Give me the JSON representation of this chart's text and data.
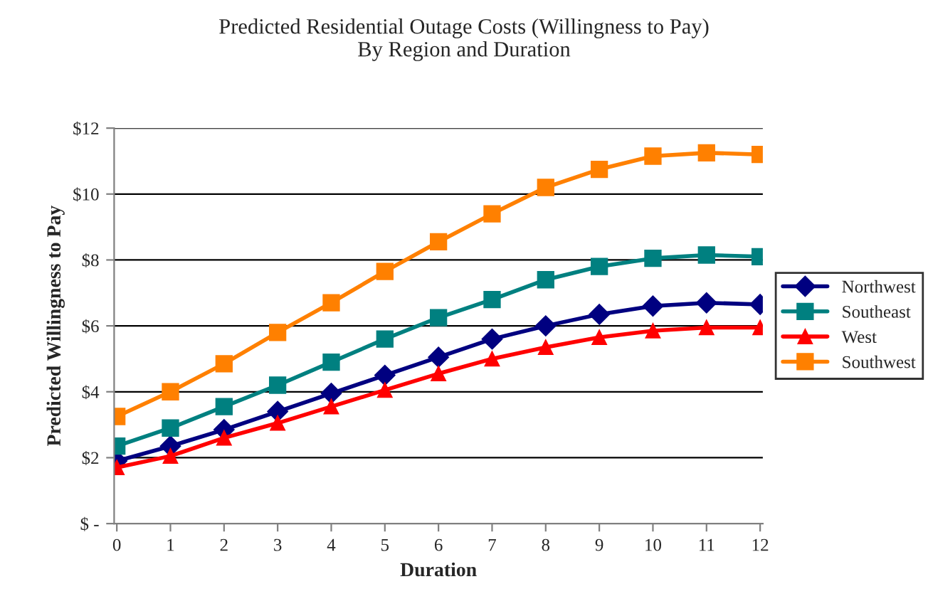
{
  "chart_data": {
    "type": "line",
    "title": "Predicted Residential Outage Costs (Willingness to Pay)\nBy Region and Duration",
    "xlabel": "Duration",
    "ylabel": "Predicted Willingness to Pay",
    "categories": [
      "0",
      "1",
      "2",
      "3",
      "4",
      "5",
      "6",
      "7",
      "8",
      "9",
      "10",
      "11",
      "12"
    ],
    "series": [
      {
        "name": "Northwest",
        "color": "#000080",
        "marker": "diamond",
        "values": [
          1.9,
          2.35,
          2.85,
          3.4,
          3.95,
          4.5,
          5.05,
          5.6,
          6.0,
          6.35,
          6.6,
          6.7,
          6.65
        ]
      },
      {
        "name": "Southeast",
        "color": "#008080",
        "marker": "square",
        "values": [
          2.35,
          2.9,
          3.55,
          4.2,
          4.9,
          5.6,
          6.25,
          6.8,
          7.4,
          7.8,
          8.05,
          8.15,
          8.1
        ]
      },
      {
        "name": "West",
        "color": "#ff0000",
        "marker": "triangle",
        "values": [
          1.7,
          2.05,
          2.6,
          3.05,
          3.55,
          4.05,
          4.55,
          5.0,
          5.35,
          5.65,
          5.85,
          5.95,
          5.95
        ]
      },
      {
        "name": "Southwest",
        "color": "#ff8000",
        "marker": "square",
        "values": [
          3.25,
          4.0,
          4.85,
          5.8,
          6.7,
          7.65,
          8.55,
          9.4,
          10.2,
          10.75,
          11.15,
          11.25,
          11.2
        ]
      }
    ],
    "ylim": [
      0,
      12
    ],
    "yticks": [
      {
        "value": 0,
        "label": "$ -"
      },
      {
        "value": 2,
        "label": "$2"
      },
      {
        "value": 4,
        "label": "$4"
      },
      {
        "value": 6,
        "label": "$6"
      },
      {
        "value": 8,
        "label": "$8"
      },
      {
        "value": 10,
        "label": "$10"
      },
      {
        "value": 12,
        "label": "$12"
      }
    ],
    "grid": "y",
    "legend": "right"
  }
}
